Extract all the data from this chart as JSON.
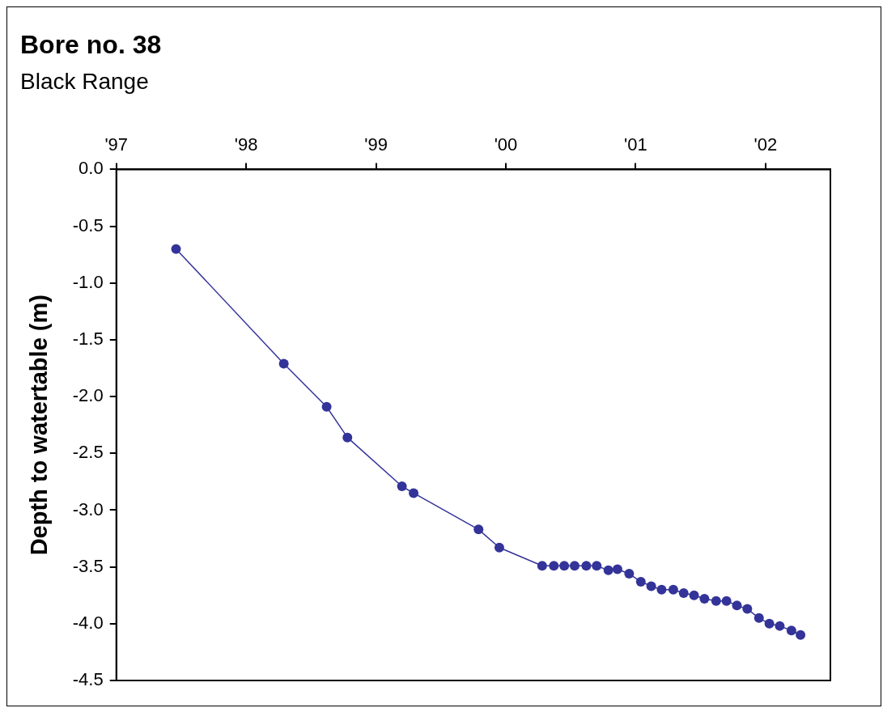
{
  "chart_data": {
    "type": "line",
    "title": "Bore no. 38",
    "subtitle": "Black Range",
    "ylabel": "Depth to watertable (m)",
    "x": [
      1997.46,
      1998.29,
      1998.62,
      1998.78,
      1999.2,
      1999.29,
      1999.79,
      1999.95,
      2000.28,
      2000.37,
      2000.45,
      2000.53,
      2000.62,
      2000.7,
      2000.79,
      2000.86,
      2000.95,
      2001.04,
      2001.12,
      2001.2,
      2001.29,
      2001.37,
      2001.45,
      2001.53,
      2001.62,
      2001.7,
      2001.78,
      2001.86,
      2001.95,
      2002.03,
      2002.11,
      2002.2,
      2002.27
    ],
    "series": [
      {
        "color": "#333399",
        "values": [
          -0.7,
          -1.71,
          -2.09,
          -2.36,
          -2.79,
          -2.85,
          -3.17,
          -3.33,
          -3.49,
          -3.49,
          -3.49,
          -3.49,
          -3.49,
          -3.49,
          -3.53,
          -3.52,
          -3.56,
          -3.63,
          -3.67,
          -3.7,
          -3.7,
          -3.73,
          -3.75,
          -3.78,
          -3.8,
          -3.8,
          -3.84,
          -3.87,
          -3.95,
          -4.0,
          -4.02,
          -4.06,
          -4.1
        ]
      }
    ],
    "xlim": [
      1997,
      2002.5
    ],
    "xticks": [
      {
        "value": 1997,
        "label": "'97"
      },
      {
        "value": 1998,
        "label": "'98"
      },
      {
        "value": 1999,
        "label": "'99"
      },
      {
        "value": 2000,
        "label": "'00"
      },
      {
        "value": 2001,
        "label": "'01"
      },
      {
        "value": 2002,
        "label": "'02"
      }
    ],
    "ylim": [
      -4.5,
      0
    ],
    "yticks": [
      {
        "value": -4.5,
        "label": "-4.5"
      },
      {
        "value": -4,
        "label": "-4.0"
      },
      {
        "value": -3.5,
        "label": "-3.5"
      },
      {
        "value": -3,
        "label": "-3.0"
      },
      {
        "value": -2.5,
        "label": "-2.5"
      },
      {
        "value": -2,
        "label": "-2.0"
      },
      {
        "value": -1.5,
        "label": "-1.5"
      },
      {
        "value": -1,
        "label": "-1.0"
      },
      {
        "value": -0.5,
        "label": "-0.5"
      },
      {
        "value": 0,
        "label": "0.0"
      }
    ],
    "grid": false,
    "legend": false,
    "marker": "circle",
    "line_style": "solid"
  }
}
